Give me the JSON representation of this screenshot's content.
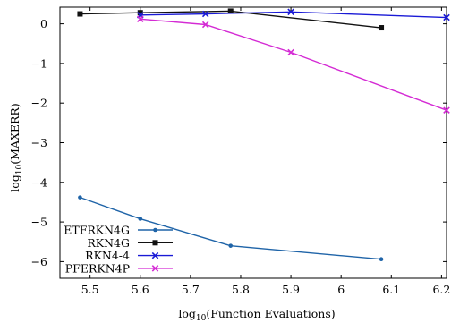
{
  "chart_data": {
    "type": "line",
    "xlabel": "log10(Function Evaluations)",
    "ylabel": "log10(MAXERR)",
    "xlim": [
      5.44,
      6.21
    ],
    "ylim": [
      -6.42,
      0.42
    ],
    "x_ticks": [
      5.5,
      5.6,
      5.7,
      5.8,
      5.9,
      6,
      6.1,
      6.2
    ],
    "x_tick_labels": [
      "5.5",
      "5.6",
      "5.7",
      "5.8",
      "5.9",
      "6",
      "6.1",
      "6.2"
    ],
    "y_ticks": [
      0,
      -1,
      -2,
      -3,
      -4,
      -5,
      -6
    ],
    "y_tick_labels": [
      "0",
      "−1",
      "−2",
      "−3",
      "−4",
      "−5",
      "−6"
    ],
    "grid": false,
    "legend_position": "bottom-left",
    "series": [
      {
        "name": "ETFRKN4G",
        "color": "#1f64a8",
        "marker": "dot",
        "x": [
          5.48,
          5.6,
          5.78,
          6.08
        ],
        "y": [
          -4.38,
          -4.92,
          -5.6,
          -5.94
        ]
      },
      {
        "name": "RKN4G",
        "color": "#111111",
        "marker": "square",
        "x": [
          5.48,
          5.6,
          5.78,
          6.08
        ],
        "y": [
          0.25,
          0.28,
          0.32,
          -0.1
        ]
      },
      {
        "name": "RKN4-4",
        "color": "#1a1ad6",
        "marker": "x",
        "x": [
          5.6,
          5.73,
          5.9,
          6.21
        ],
        "y": [
          0.22,
          0.25,
          0.3,
          0.16
        ]
      },
      {
        "name": "PFERKN4P",
        "color": "#d42bd4",
        "marker": "x",
        "x": [
          5.6,
          5.73,
          5.9,
          6.21
        ],
        "y": [
          0.12,
          -0.02,
          -0.72,
          -2.18
        ]
      }
    ]
  }
}
